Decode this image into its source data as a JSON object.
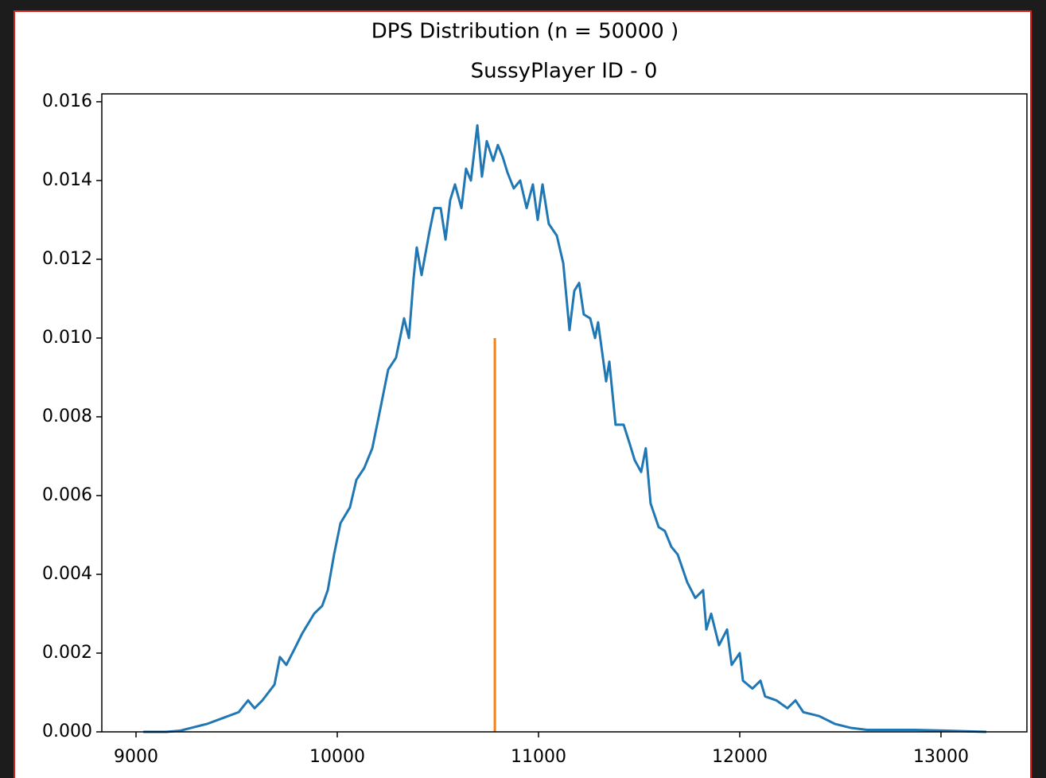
{
  "chart_data": {
    "type": "line",
    "title": "DPS Distribution (n = 50000 )",
    "subtitle": "SussyPlayer ID - 0",
    "xlim": [
      8830,
      13427
    ],
    "ylim": [
      0,
      0.0162
    ],
    "xticks": [
      9000,
      10000,
      11000,
      12000,
      13000
    ],
    "yticks": [
      {
        "value": 0,
        "label": "0.000"
      },
      {
        "value": 0.002,
        "label": "0.002"
      },
      {
        "value": 0.004,
        "label": "0.004"
      },
      {
        "value": 0.006,
        "label": "0.006"
      },
      {
        "value": 0.008,
        "label": "0.008"
      },
      {
        "value": 0.01,
        "label": "0.010"
      },
      {
        "value": 0.012,
        "label": "0.012"
      },
      {
        "value": 0.014,
        "label": "0.014"
      },
      {
        "value": 0.016,
        "label": "0.016"
      }
    ],
    "series": [
      {
        "color": "#1f77b4",
        "x": [
          9036,
          9150,
          9220,
          9273,
          9352,
          9431,
          9510,
          9557,
          9589,
          9628,
          9688,
          9715,
          9747,
          9787,
          9826,
          9885,
          9925,
          9953,
          9984,
          10016,
          10063,
          10095,
          10134,
          10174,
          10206,
          10253,
          10292,
          10332,
          10356,
          10379,
          10395,
          10419,
          10458,
          10482,
          10514,
          10538,
          10561,
          10585,
          10617,
          10640,
          10664,
          10696,
          10719,
          10743,
          10775,
          10798,
          10822,
          10846,
          10877,
          10909,
          10941,
          10972,
          10996,
          11020,
          11051,
          11091,
          11123,
          11154,
          11178,
          11202,
          11225,
          11257,
          11281,
          11296,
          11336,
          11352,
          11383,
          11423,
          11454,
          11478,
          11510,
          11533,
          11557,
          11597,
          11628,
          11660,
          11692,
          11739,
          11779,
          11818,
          11834,
          11858,
          11897,
          11937,
          11960,
          12000,
          12016,
          12063,
          12103,
          12126,
          12182,
          12237,
          12277,
          12316,
          12395,
          12474,
          12553,
          12632,
          12751,
          12870,
          13028,
          13225
        ],
        "values": [
          0,
          0,
          3e-05,
          0.0001,
          0.0002,
          0.00035,
          0.0005,
          0.0008,
          0.0006,
          0.0008,
          0.0012,
          0.0019,
          0.0017,
          0.0021,
          0.0025,
          0.003,
          0.0032,
          0.0036,
          0.0045,
          0.0053,
          0.0057,
          0.0064,
          0.0067,
          0.0072,
          0.008,
          0.0092,
          0.0095,
          0.0105,
          0.01,
          0.0115,
          0.0123,
          0.0116,
          0.0127,
          0.0133,
          0.0133,
          0.0125,
          0.0135,
          0.0139,
          0.0133,
          0.0143,
          0.014,
          0.0154,
          0.0141,
          0.015,
          0.0145,
          0.0149,
          0.0146,
          0.0142,
          0.0138,
          0.014,
          0.0133,
          0.0139,
          0.013,
          0.0139,
          0.0129,
          0.0126,
          0.0119,
          0.0102,
          0.0112,
          0.0114,
          0.0106,
          0.0105,
          0.01,
          0.0104,
          0.0089,
          0.0094,
          0.0078,
          0.0078,
          0.0073,
          0.0069,
          0.0066,
          0.0072,
          0.0058,
          0.0052,
          0.0051,
          0.0047,
          0.0045,
          0.0038,
          0.0034,
          0.0036,
          0.0026,
          0.003,
          0.0022,
          0.0026,
          0.0017,
          0.002,
          0.0013,
          0.0011,
          0.0013,
          0.0009,
          0.0008,
          0.0006,
          0.0008,
          0.0005,
          0.0004,
          0.0002,
          0.0001,
          5e-05,
          5e-05,
          5e-05,
          3e-05,
          0
        ]
      },
      {
        "color": "#ff7f0e",
        "x": [
          10783,
          10783
        ],
        "values": [
          0,
          0.01
        ]
      }
    ]
  }
}
